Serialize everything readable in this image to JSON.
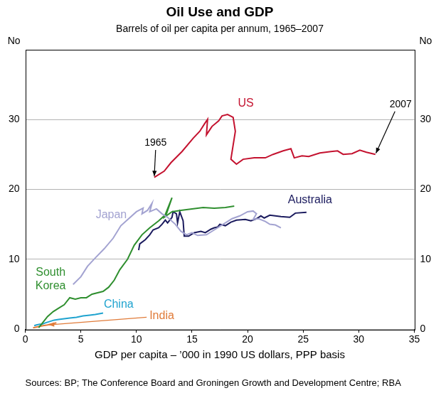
{
  "chart_data": {
    "type": "line",
    "title": "Oil Use and GDP",
    "subtitle": "Barrels of oil per capita per annum, 1965–2007",
    "y_label": "No",
    "y2_label": "No",
    "x_label": "GDP per capita – ’000 in 1990 US dollars, PPP basis",
    "source": "Sources: BP; The Conference Board and Groningen Growth and Development Centre; RBA",
    "xlim": [
      0,
      35
    ],
    "xticks": [
      0,
      5,
      10,
      15,
      20,
      25,
      30,
      35
    ],
    "ylim": [
      0,
      40
    ],
    "yticks": [
      0,
      10,
      20,
      30
    ],
    "y2lim": [
      0,
      40
    ],
    "y2ticks": [
      0,
      10,
      20,
      30
    ],
    "grid": true,
    "annotations": [
      {
        "text": "1965"
      },
      {
        "text": "2007"
      }
    ],
    "series": [
      {
        "name": "US",
        "color": "#c4122f",
        "x": [
          11.6,
          12.5,
          13.1,
          14.1,
          15.1,
          15.7,
          16.1,
          16.4,
          16.3,
          16.8,
          17.4,
          17.7,
          18.2,
          18.7,
          18.9,
          18.5,
          19.0,
          19.6,
          20.6,
          21.6,
          22.3,
          23.2,
          23.9,
          24.2,
          24.9,
          25.5,
          26.5,
          27.5,
          28.1,
          28.6,
          29.4,
          30.1,
          30.7,
          31.5
        ],
        "values": [
          21.7,
          22.6,
          23.8,
          25.4,
          27.3,
          28.3,
          29.3,
          30.0,
          27.8,
          29.0,
          29.8,
          30.5,
          30.7,
          30.3,
          28.3,
          24.3,
          23.6,
          24.3,
          24.5,
          24.5,
          25.0,
          25.5,
          25.8,
          24.5,
          24.8,
          24.7,
          25.2,
          25.4,
          25.5,
          25.0,
          25.1,
          25.6,
          25.3,
          25.0
        ]
      },
      {
        "name": "Japan",
        "color": "#a3a3d1",
        "x": [
          4.3,
          5.0,
          5.6,
          6.3,
          7.1,
          7.9,
          8.6,
          9.3,
          10.0,
          10.6,
          10.5,
          11.0,
          11.4,
          11.2,
          11.8,
          12.3,
          12.8,
          13.5,
          14.0,
          14.5,
          15.0,
          15.5,
          16.3,
          17.0,
          17.8,
          18.6,
          19.3,
          20.0,
          20.5,
          20.8,
          20.5,
          21.0,
          21.6,
          22.0,
          22.5,
          23.0
        ],
        "values": [
          6.4,
          7.5,
          9.0,
          10.2,
          11.5,
          13.0,
          14.8,
          15.8,
          16.8,
          17.3,
          16.5,
          17.0,
          18.0,
          16.8,
          17.2,
          16.5,
          16.0,
          15.0,
          14.0,
          13.5,
          13.8,
          13.4,
          13.5,
          14.2,
          15.0,
          15.8,
          16.2,
          16.8,
          16.9,
          16.5,
          15.7,
          15.8,
          15.4,
          15.0,
          14.9,
          14.5
        ]
      },
      {
        "name": "South Korea",
        "color": "#2f8f2f",
        "x": [
          1.2,
          1.6,
          2.0,
          2.5,
          3.0,
          3.5,
          4.0,
          4.5,
          5.0,
          5.5,
          6.0,
          7.0,
          7.5,
          8.0,
          8.5,
          9.2,
          9.8,
          10.5,
          11.2,
          12.0,
          12.7,
          13.2,
          12.5,
          13.2,
          14.0,
          15.0,
          16.0,
          17.0,
          18.0,
          18.8
        ],
        "values": [
          0.2,
          1.0,
          1.8,
          2.5,
          3.0,
          3.5,
          4.5,
          4.3,
          4.5,
          4.5,
          5.0,
          5.4,
          6.0,
          7.0,
          8.5,
          10.0,
          12.0,
          13.5,
          14.5,
          15.5,
          16.5,
          18.8,
          16.0,
          16.8,
          17.0,
          17.2,
          17.4,
          17.3,
          17.4,
          17.6
        ]
      },
      {
        "name": "Australia",
        "color": "#1b1b5e",
        "x": [
          10.2,
          10.3,
          10.8,
          11.2,
          11.5,
          12.0,
          12.3,
          12.6,
          12.8,
          13.2,
          13.3,
          13.6,
          13.7,
          13.9,
          14.2,
          14.3,
          14.7,
          15.2,
          15.8,
          16.2,
          16.7,
          17.0,
          17.3,
          17.5,
          18.0,
          18.5,
          19.0,
          19.8,
          20.3,
          20.8,
          21.2,
          21.5,
          22.0,
          22.5,
          23.0,
          23.8,
          24.3,
          25.3
        ],
        "values": [
          11.3,
          12.2,
          12.8,
          13.5,
          14.2,
          14.5,
          15.0,
          15.6,
          15.2,
          16.0,
          16.8,
          16.5,
          15.2,
          16.8,
          15.5,
          13.3,
          13.3,
          13.8,
          14.0,
          13.8,
          14.3,
          14.5,
          14.6,
          15.0,
          14.8,
          15.3,
          15.6,
          15.7,
          15.5,
          15.8,
          16.2,
          15.9,
          16.3,
          16.2,
          16.1,
          16.0,
          16.6,
          16.7
        ]
      },
      {
        "name": "China",
        "color": "#1fa3cf",
        "x": [
          0.8,
          1.0,
          1.3,
          1.5,
          1.8,
          2.2,
          2.6,
          3.0,
          3.5,
          4.0,
          4.6,
          5.2,
          5.8,
          6.3,
          7.0
        ],
        "values": [
          0.5,
          0.6,
          0.7,
          0.7,
          0.9,
          1.1,
          1.3,
          1.4,
          1.5,
          1.6,
          1.7,
          1.9,
          2.0,
          2.1,
          2.3
        ]
      },
      {
        "name": "India",
        "color": "#e07b39",
        "x": [
          0.7,
          1.0,
          1.3,
          1.6,
          2.0,
          2.5,
          2.8
        ],
        "values": [
          0.2,
          0.3,
          0.4,
          0.5,
          0.6,
          0.8,
          0.9
        ]
      }
    ]
  }
}
